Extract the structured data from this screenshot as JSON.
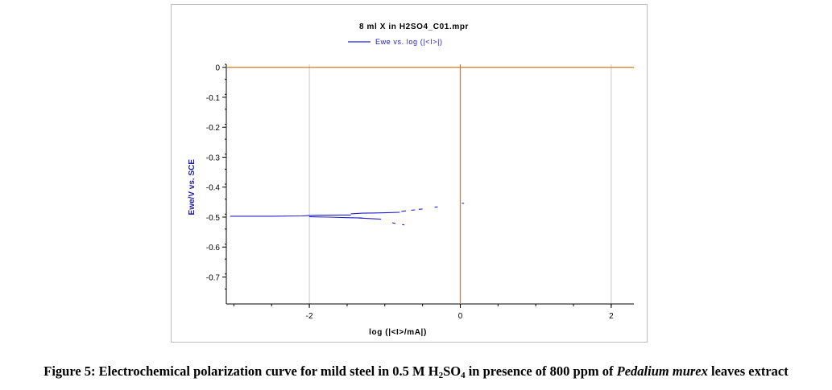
{
  "figure": {
    "caption": {
      "prefix": "Figure 5: Electrochemical polarization curve for mild steel in 0.5 M H",
      "sub1": "2",
      "mid1": "SO",
      "sub2": "4",
      "mid2": " in presence of 800 ppm of ",
      "species": "Pedalium murex",
      "suffix": " leaves extract"
    }
  },
  "chart_data": {
    "type": "line",
    "title": "8 ml X in H2SO4_C01.mpr",
    "xlabel": "log (|<I>/mA|)",
    "ylabel": "Ewe/V vs. SCE",
    "xlim": [
      -3.1,
      2.3
    ],
    "ylim": [
      -0.79,
      0.01
    ],
    "x_ticks": [
      -2,
      0,
      2
    ],
    "x_tick_labels": [
      "-2",
      "0",
      "2"
    ],
    "y_ticks": [
      0,
      -0.1,
      -0.2,
      -0.3,
      -0.4,
      -0.5,
      -0.6,
      -0.7
    ],
    "y_tick_labels": [
      "0",
      "-0.1",
      "-0.2",
      "-0.3",
      "-0.4",
      "-0.5",
      "-0.6",
      "-0.7"
    ],
    "grid": true,
    "legend_position": "top-center",
    "reference_lines": {
      "x": 0,
      "y": 0,
      "color": "#e07818"
    },
    "colors": {
      "series": "#2020cc",
      "axis_label": "#1a1aa0",
      "grid": "#c8c8c8",
      "reference": "#e07818"
    },
    "series": [
      {
        "name": "Ewe vs. log (|<I>|)",
        "segments": [
          {
            "x": [
              -3.05,
              -2.5,
              -2.1,
              -1.9,
              -1.6,
              -1.45
            ],
            "y": [
              -0.497,
              -0.497,
              -0.496,
              -0.494,
              -0.493,
              -0.493
            ]
          },
          {
            "x": [
              -1.45,
              -1.3,
              -1.1,
              -0.95,
              -0.8
            ],
            "y": [
              -0.489,
              -0.487,
              -0.486,
              -0.485,
              -0.484
            ]
          },
          {
            "x": [
              -2.0,
              -1.75,
              -1.5,
              -1.3
            ],
            "y": [
              -0.499,
              -0.5,
              -0.502,
              -0.503
            ]
          },
          {
            "x": [
              -1.35,
              -1.2,
              -1.05
            ],
            "y": [
              -0.503,
              -0.505,
              -0.507
            ]
          },
          {
            "x": [
              -0.9,
              -0.86
            ],
            "y": [
              -0.519,
              -0.521
            ]
          },
          {
            "x": [
              -0.77,
              -0.74
            ],
            "y": [
              -0.525,
              -0.526
            ]
          },
          {
            "x": [
              -0.78,
              -0.72
            ],
            "y": [
              -0.481,
              -0.479
            ]
          },
          {
            "x": [
              -0.65,
              -0.6
            ],
            "y": [
              -0.477,
              -0.476
            ]
          },
          {
            "x": [
              -0.55,
              -0.5
            ],
            "y": [
              -0.474,
              -0.473
            ]
          },
          {
            "x": [
              -0.34,
              -0.3
            ],
            "y": [
              -0.467,
              -0.466
            ]
          },
          {
            "x": [
              0.02,
              0.05
            ],
            "y": [
              -0.454,
              -0.454
            ]
          }
        ]
      }
    ]
  }
}
